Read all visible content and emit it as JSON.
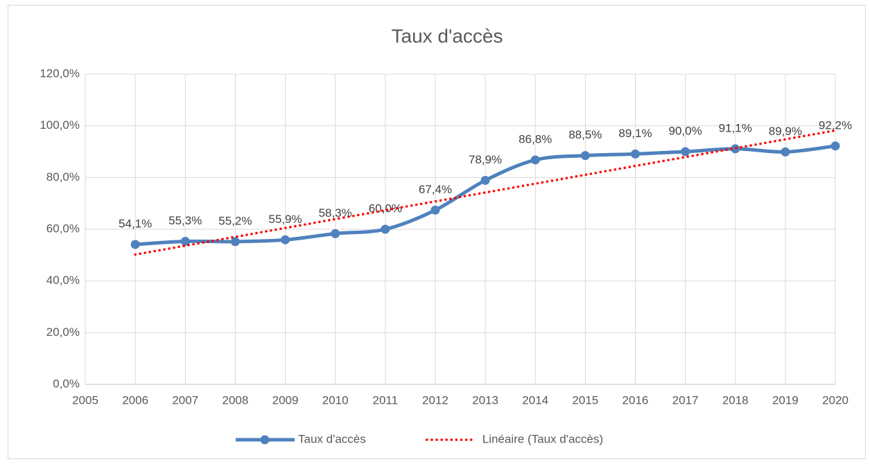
{
  "chart_data": {
    "type": "line",
    "title": "Taux d'accès",
    "series": [
      {
        "name": "Taux d'accès",
        "color": "#4f81bd",
        "x": [
          2006,
          2007,
          2008,
          2009,
          2010,
          2011,
          2012,
          2013,
          2014,
          2015,
          2016,
          2017,
          2018,
          2019,
          2020
        ],
        "values": [
          54.1,
          55.3,
          55.2,
          55.9,
          58.3,
          60.0,
          67.4,
          78.9,
          86.8,
          88.5,
          89.1,
          90.0,
          91.1,
          89.9,
          92.2
        ],
        "value_labels": [
          "54,1%",
          "55,3%",
          "55,2%",
          "55,9%",
          "58,3%",
          "60,0%",
          "67,4%",
          "78,9%",
          "86,8%",
          "88,5%",
          "89,1%",
          "90,0%",
          "91,1%",
          "89,9%",
          "92,2%"
        ]
      },
      {
        "name": "Linéaire (Taux d'accès)",
        "color": "#ff0000",
        "trendline": true,
        "x": [
          2006,
          2020
        ],
        "values": [
          50.2,
          98.2
        ]
      }
    ],
    "xlim": [
      2005,
      2020
    ],
    "xticks": [
      2005,
      2006,
      2007,
      2008,
      2009,
      2010,
      2011,
      2012,
      2013,
      2014,
      2015,
      2016,
      2017,
      2018,
      2019,
      2020
    ],
    "ylim": [
      0,
      120
    ],
    "yticks": [
      {
        "value": 0,
        "label": "0,0%"
      },
      {
        "value": 20,
        "label": "20,0%"
      },
      {
        "value": 40,
        "label": "40,0%"
      },
      {
        "value": 60,
        "label": "60,0%"
      },
      {
        "value": 80,
        "label": "80,0%"
      },
      {
        "value": 100,
        "label": "100,0%"
      },
      {
        "value": 120,
        "label": "120,0%"
      }
    ],
    "grid": true,
    "legend": "bottom"
  }
}
